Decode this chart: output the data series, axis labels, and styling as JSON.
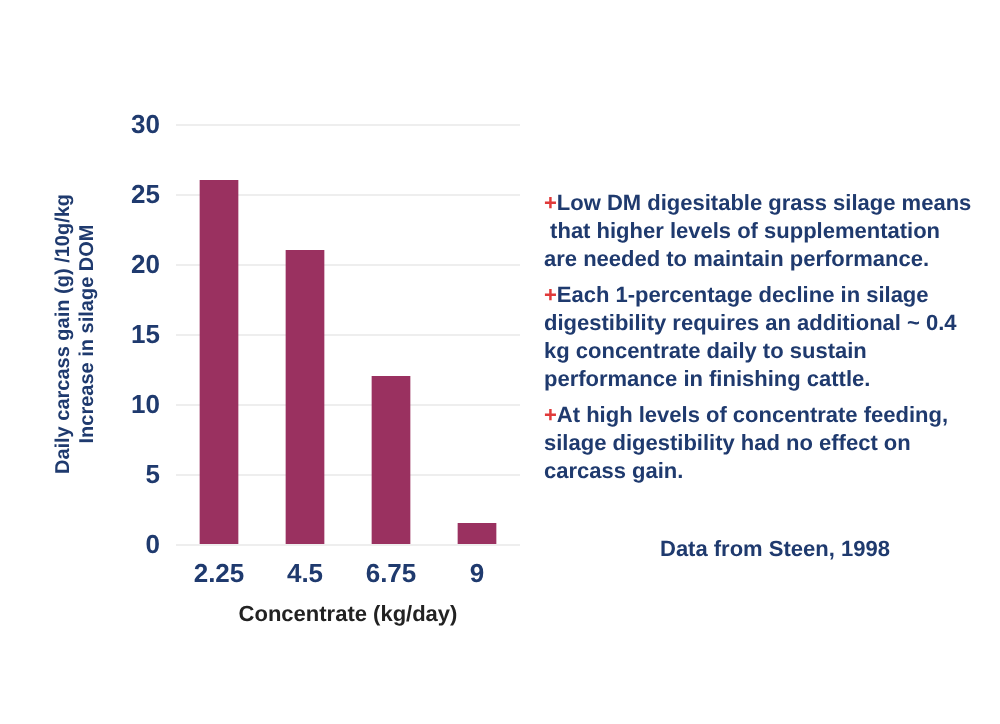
{
  "chart_data": {
    "type": "bar",
    "categories": [
      "2.25",
      "4.5",
      "6.75",
      "9"
    ],
    "values": [
      26,
      21,
      12,
      1.5
    ],
    "color": "#9a3160",
    "xlabel": "Concentrate (kg/day)",
    "ylabel": "Daily carcass gain (g) /10g/kg\nIncrease in silage DOM",
    "ylim": [
      0,
      30
    ],
    "yticks": [
      0,
      5,
      10,
      15,
      20,
      25,
      30
    ],
    "grid": "y",
    "annotations": [
      "+Low DM digesitable grass silage means that higher levels of supplementation are needed to maintain performance.",
      "+Each 1-percentage decline in silage digestibility requires an additional ~ 0.4 kg concentrate daily to sustain performance in finishing cattle.",
      "+At high levels of concentrate feeding, silage digestibility had no effect on carcass gain.",
      "Data from Steen, 1998"
    ]
  }
}
